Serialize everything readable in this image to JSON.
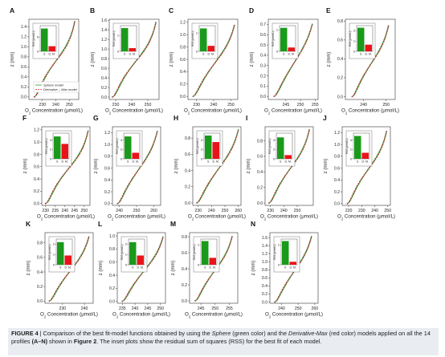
{
  "chart_data": {
    "type": "line",
    "common": {
      "xlabel_main": "O",
      "xlabel_sub": "2",
      "xlabel_rest": " Concentration (μmol/L)",
      "ylabel": "z (mm)",
      "inset_ylabel": "RSS (μmol/L)²",
      "inset_categories": [
        "S",
        "D. M."
      ],
      "series": [
        {
          "name": "Sphere model",
          "color": "#2ca02c"
        },
        {
          "name": "Derivative – Max model",
          "color": "#d62728"
        }
      ],
      "inset_colors": [
        "#1a9a1a",
        "#e8141a"
      ]
    },
    "panels": [
      {
        "label": "A",
        "xlim": [
          220,
          257
        ],
        "xticks": [
          230,
          240,
          250
        ],
        "ylim": [
          -0.05,
          1.55
        ],
        "yticks": [
          0.0,
          0.2,
          0.4,
          0.6,
          0.8,
          1.0,
          1.2,
          1.4
        ],
        "x0": 224,
        "x1": 254,
        "ymax": 1.5,
        "k": 3.0,
        "inset": {
          "ticks": [
            0,
            5
          ],
          "ymax": 9,
          "values": [
            8,
            1.8
          ]
        },
        "legend": true
      },
      {
        "label": "B",
        "xlim": [
          226,
          257
        ],
        "xticks": [
          230,
          240,
          250
        ],
        "ylim": [
          -0.05,
          1.62
        ],
        "yticks": [
          0.0,
          0.2,
          0.4,
          0.6,
          0.8,
          1.0,
          1.2,
          1.4,
          1.6
        ],
        "x0": 228,
        "x1": 255,
        "ymax": 1.55,
        "k": 3.0,
        "inset": {
          "ticks": [
            0,
            1
          ],
          "ymax": 1.6,
          "values": [
            1.45,
            0.2
          ]
        }
      },
      {
        "label": "C",
        "xlim": [
          225,
          254
        ],
        "xticks": [
          230,
          240,
          250
        ],
        "ylim": [
          -0.05,
          1.25
        ],
        "yticks": [
          0.0,
          0.2,
          0.4,
          0.6,
          0.8,
          1.0,
          1.2
        ],
        "x0": 228,
        "x1": 252,
        "ymax": 1.15,
        "k": 2.6,
        "inset": {
          "ticks": [
            0,
            1
          ],
          "ymax": 1.4,
          "values": [
            1.25,
            0.3
          ]
        }
      },
      {
        "label": "D",
        "xlim": [
          239,
          256
        ],
        "xticks": [
          245,
          250,
          255
        ],
        "ylim": [
          -0.03,
          0.75
        ],
        "yticks": [
          0.0,
          0.1,
          0.2,
          0.3,
          0.4,
          0.5,
          0.6,
          0.7
        ],
        "x0": 241,
        "x1": 254,
        "ymax": 0.7,
        "k": 2.2,
        "inset": {
          "ticks": [
            0,
            1
          ],
          "ymax": 1.2,
          "values": [
            1.1,
            0.18
          ]
        }
      },
      {
        "label": "E",
        "xlim": [
          232,
          254
        ],
        "xticks": [
          240,
          250
        ],
        "ylim": [
          -0.03,
          0.82
        ],
        "yticks": [
          0.0,
          0.2,
          0.4,
          0.6,
          0.8
        ],
        "x0": 235,
        "x1": 251,
        "ymax": 0.75,
        "k": 2.6,
        "inset": {
          "ticks": [
            0,
            1,
            2
          ],
          "ymax": 2.5,
          "values": [
            2.3,
            0.65
          ]
        }
      },
      {
        "label": "F",
        "xlim": [
          228,
          253
        ],
        "xticks": [
          230,
          235,
          240,
          245,
          250
        ],
        "ylim": [
          -0.03,
          1.25
        ],
        "yticks": [
          0.0,
          0.2,
          0.4,
          0.6,
          0.8,
          1.0,
          1.2
        ],
        "x0": 230,
        "x1": 252,
        "ymax": 1.18,
        "k": 3.0,
        "inset": {
          "ticks": [
            0,
            2,
            4
          ],
          "ymax": 5.5,
          "values": [
            4.8,
            3.2
          ]
        }
      },
      {
        "label": "G",
        "xlim": [
          236,
          264
        ],
        "xticks": [
          240,
          250,
          260
        ],
        "ylim": [
          -0.03,
          1.3
        ],
        "yticks": [
          0.0,
          0.2,
          0.4,
          0.6,
          0.8,
          1.0,
          1.2
        ],
        "x0": 239,
        "x1": 262,
        "ymax": 1.22,
        "k": 2.6,
        "inset": {
          "ticks": [
            0,
            2,
            4
          ],
          "ymax": 5.5,
          "values": [
            4.8,
            1.3
          ]
        }
      },
      {
        "label": "H",
        "xlim": [
          226,
          262
        ],
        "xticks": [
          230,
          240,
          250,
          260
        ],
        "ylim": [
          -0.03,
          0.94
        ],
        "yticks": [
          0.0,
          0.2,
          0.4,
          0.6,
          0.8
        ],
        "x0": 229,
        "x1": 260,
        "ymax": 0.9,
        "k": 2.6,
        "inset": {
          "ticks": [
            0,
            2,
            4
          ],
          "ymax": 5.5,
          "values": [
            5.0,
            3.6
          ]
        }
      },
      {
        "label": "I",
        "xlim": [
          226,
          262
        ],
        "xticks": [
          230,
          240,
          250
        ],
        "ylim": [
          -0.03,
          0.98
        ],
        "yticks": [
          0.0,
          0.2,
          0.4,
          0.6,
          0.8
        ],
        "x0": 229,
        "x1": 259,
        "ymax": 0.94,
        "k": 2.8,
        "inset": {
          "ticks": [
            0,
            2,
            4
          ],
          "ymax": 5.5,
          "values": [
            4.6,
            0.8
          ]
        }
      },
      {
        "label": "J",
        "xlim": [
          215,
          252
        ],
        "xticks": [
          220,
          230,
          240,
          250
        ],
        "ylim": [
          -0.03,
          1.3
        ],
        "yticks": [
          0.0,
          0.2,
          0.4,
          0.6,
          0.8,
          1.0,
          1.2
        ],
        "x0": 219,
        "x1": 249,
        "ymax": 1.22,
        "k": 2.8,
        "inset": {
          "ticks": [
            0,
            2,
            4
          ],
          "ymax": 5.5,
          "values": [
            4.9,
            1.3
          ]
        }
      },
      {
        "label": "K",
        "xlim": [
          222,
          244
        ],
        "xticks": [
          230,
          240
        ],
        "ylim": [
          -0.03,
          0.94
        ],
        "yticks": [
          0.0,
          0.2,
          0.4,
          0.6,
          0.8
        ],
        "x0": 224,
        "x1": 242,
        "ymax": 0.88,
        "k": 2.6,
        "inset": {
          "ticks": [
            0,
            1,
            2
          ],
          "ymax": 2.5,
          "values": [
            2.2,
            0.9
          ]
        }
      },
      {
        "label": "L",
        "xlim": [
          233,
          252
        ],
        "xticks": [
          235,
          240,
          245,
          250
        ],
        "ylim": [
          -0.03,
          1.05
        ],
        "yticks": [
          0.0,
          0.2,
          0.4,
          0.6,
          0.8,
          1.0
        ],
        "x0": 235,
        "x1": 251,
        "ymax": 0.98,
        "k": 2.6,
        "inset": {
          "ticks": [
            0,
            1,
            2
          ],
          "ymax": 2.5,
          "values": [
            2.2,
            0.9
          ]
        }
      },
      {
        "label": "M",
        "xlim": [
          241,
          258
        ],
        "xticks": [
          245,
          250,
          255
        ],
        "ylim": [
          -0.03,
          0.85
        ],
        "yticks": [
          0.0,
          0.2,
          0.4,
          0.6,
          0.8
        ],
        "x0": 243,
        "x1": 256,
        "ymax": 0.8,
        "k": 2.6,
        "inset": {
          "ticks": [
            0,
            1
          ],
          "ymax": 1.3,
          "values": [
            1.2,
            0.35
          ]
        }
      },
      {
        "label": "N",
        "xlim": [
          233,
          262
        ],
        "xticks": [
          240,
          250,
          260
        ],
        "ylim": [
          -0.03,
          1.72
        ],
        "yticks": [
          0.0,
          0.2,
          0.4,
          0.6,
          0.8,
          1.0,
          1.2,
          1.4,
          1.6
        ],
        "x0": 236,
        "x1": 258,
        "ymax": 1.62,
        "k": 2.4,
        "inset": {
          "ticks": [
            0,
            1
          ],
          "ymax": 1.3,
          "values": [
            1.2,
            0.15
          ]
        }
      }
    ]
  },
  "caption": {
    "label": "FIGURE 4",
    "t1": " | Comparison of the best fit-model functions obtained by using the ",
    "m1": "Sphere",
    "t2": " (green color) and the ",
    "m2": "Derivative-Max",
    "t3": " (red color) models applied on all the 14 profiles ",
    "r1": "(A–N)",
    "t4": " shown in ",
    "r2": "Figure 2",
    "t5": ". The inset plots show the residual sum of squares (RSS) for the best fit of each model."
  }
}
